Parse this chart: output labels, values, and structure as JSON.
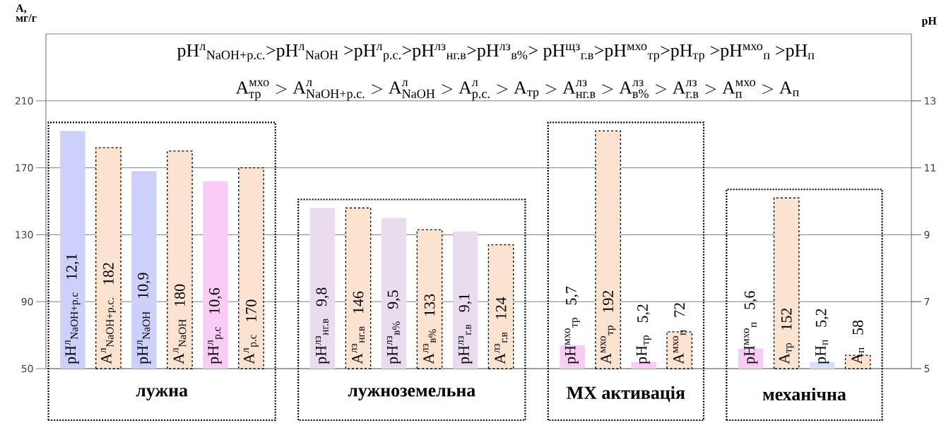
{
  "chart_data": {
    "type": "bar",
    "ylabel": "A, мг/г",
    "y2label": "pH",
    "annotations": [
      "pH$^{л}$$_{NaOH+р.с.}$>pH$^{л}$$_{NaOH}$ >pH$^{л}$$_{р.с.}$>pH$^{лз}$$_{нг.в}$>pH$^{лз}$$_{в%}$> pH$^{щз}$$_{г.в}$>pH$^{мхо}$$_{тр}$>pH$_{тр}$ >pH$^{мхо}$$_{п}$ >pH$_{п}$",
      "\\text{A}^{\\text{мхо}}_{\\text{тр}}>\\text{A}^{\\text{л}}_{\\text{NaOH+р.с.}}>\\text{A}^{\\text{л}}_{\\text{NaOH}}>\\text{A}^{\\text{л}}_{\\text{р.с.}}>\\text{A}_{\\text{тр}}>\\text{A}^{\\text{лз}}_{\\text{нг.в}}>\\text{A}^{\\text{лз}}_{\\text{в\\%}}>\\text{A}^{\\text{лз}}_{\\text{г.в}}>\\text{A}^{\\text{мхо}}_{\\text{п}}>\\text{A}_{\\text{п}}",
      "лужна",
      "лужноземельна",
      "МХ активація",
      "механічна"
    ],
    "categories": [
      "pH$^{л}$$_{NaOH+р.с}$",
      "A$^{л}$$_{NaOH+р.с.}$",
      "pH$^{л}$$_{NaOH}$",
      "A$^{л}$$_{NaOH}$",
      "pH$^{л}$$_{р.с}$",
      "A$^{л}$$_{р.с}$",
      null,
      "pH$^{лз}$$_{нг.в}$",
      "A$^{лз}$$_{нг.в}$",
      "pH$^{лз}$$_{в%}$",
      "A$^{лз}$$_{в%}$",
      "pH$^{лз}$$_{г.в}$",
      "A$^{лз}$$_{г.в}$",
      null,
      "pH$^{мхо}$$_{тр}$",
      "A$^{мхо}$$_{тр}$",
      "pH$_{тр}$",
      "A$^{мхо}$$_{п}$",
      null,
      "pH$^{мхо}$$_{п}$",
      "A$_{тр}$",
      "pH$_{п}$",
      "A$_{п}$"
    ],
    "series": [
      {
        "axis": "y2",
        "colors": [
          "#ccd0fa",
          null,
          "#ccd0fa",
          null,
          "#f8ccf4",
          null,
          null,
          "#e8dcee",
          null,
          "#e8dcee",
          null,
          "#e8dcee",
          null,
          null,
          "#f8ccf4",
          null,
          "#f8ccf4",
          null,
          null,
          "#f8ccf4",
          null,
          "#d8e0fa",
          null
        ],
        "values": [
          12.1,
          null,
          10.9,
          null,
          10.6,
          null,
          null,
          9.8,
          null,
          9.5,
          null,
          9.1,
          null,
          null,
          5.7,
          null,
          5.2,
          null,
          null,
          5.6,
          null,
          5.2,
          null
        ],
        "value_labels": [
          "12,1",
          null,
          "10,9",
          null,
          "10,6",
          null,
          null,
          "9,8",
          null,
          "9,5",
          null,
          "9,1",
          null,
          null,
          "5,7",
          null,
          "5,2",
          null,
          null,
          "5,6",
          null,
          "5,2",
          null
        ]
      },
      {
        "axis": "y",
        "color": "#fbe3cf",
        "line_style": "dashed",
        "values": [
          null,
          182,
          null,
          180,
          null,
          170,
          null,
          null,
          146,
          null,
          133,
          null,
          124,
          null,
          null,
          192,
          null,
          72,
          null,
          null,
          152,
          null,
          58
        ],
        "value_labels": [
          null,
          "182",
          null,
          "180",
          null,
          "170",
          null,
          null,
          "146",
          null,
          "133",
          null,
          "124",
          null,
          null,
          "192",
          null,
          "72",
          null,
          null,
          "152",
          null,
          "58"
        ]
      }
    ],
    "ylim": [
      50,
      250
    ],
    "yticks": [
      50,
      90,
      130,
      170,
      210
    ],
    "y2lim": [
      5,
      15
    ],
    "y2ticks": [
      5,
      7,
      9,
      11,
      13
    ],
    "grid": "y"
  }
}
